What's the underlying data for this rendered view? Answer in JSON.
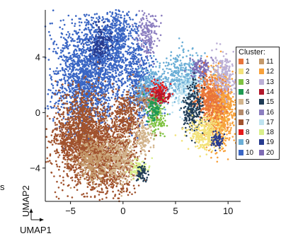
{
  "chart_data": {
    "type": "scatter",
    "title": "",
    "xlabel": "UMAP1",
    "ylabel": "UMAP2",
    "xlim": [
      -7.4,
      11.2
    ],
    "ylim": [
      -6.4,
      7.4
    ],
    "x_ticks": [
      -5,
      0,
      5,
      10
    ],
    "y_ticks": [
      -4,
      0,
      4
    ],
    "x_tick_labels": [
      "−5",
      "0",
      "5",
      "10"
    ],
    "y_tick_labels": [
      "−4",
      "0",
      "4"
    ],
    "legend": {
      "title": "Cluster:",
      "placement": "right",
      "entries": [
        {
          "label": "1",
          "color": "#e8743b"
        },
        {
          "label": "2",
          "color": "#f3e27a"
        },
        {
          "label": "3",
          "color": "#7fc241"
        },
        {
          "label": "4",
          "color": "#1f9a52"
        },
        {
          "label": "5",
          "color": "#d2b48c"
        },
        {
          "label": "6",
          "color": "#b38a6a"
        },
        {
          "label": "7",
          "color": "#a0522d"
        },
        {
          "label": "8",
          "color": "#e41a1c"
        },
        {
          "label": "9",
          "color": "#6baed6"
        },
        {
          "label": "10",
          "color": "#3a66c4"
        },
        {
          "label": "11",
          "color": "#c49a6c"
        },
        {
          "label": "12",
          "color": "#f7a13b"
        },
        {
          "label": "13",
          "color": "#bcb0d6"
        },
        {
          "label": "14",
          "color": "#b2182b"
        },
        {
          "label": "15",
          "color": "#1f3b55"
        },
        {
          "label": "16",
          "color": "#8c7fc0"
        },
        {
          "label": "17",
          "color": "#bfe3f0"
        },
        {
          "label": "18",
          "color": "#d9ef8b"
        },
        {
          "label": "19",
          "color": "#273b8f"
        },
        {
          "label": "20",
          "color": "#7e6bb3"
        }
      ]
    },
    "regions": [
      {
        "cluster": "10",
        "x": -3.3,
        "y": 2.6,
        "sx": 1.7,
        "sy": 2.0,
        "weight": 520
      },
      {
        "cluster": "10",
        "x": -0.6,
        "y": 5.2,
        "sx": 1.0,
        "sy": 1.3,
        "weight": 160
      },
      {
        "cluster": "10",
        "x": 1.6,
        "y": 2.2,
        "sx": 0.7,
        "sy": 1.4,
        "weight": 120
      },
      {
        "cluster": "19",
        "x": -2.2,
        "y": 5.0,
        "sx": 0.6,
        "sy": 0.7,
        "weight": 40
      },
      {
        "cluster": "9",
        "x": 2.8,
        "y": 1.7,
        "sx": 0.8,
        "sy": 0.7,
        "weight": 90
      },
      {
        "cluster": "9",
        "x": 5.8,
        "y": 2.6,
        "sx": 1.1,
        "sy": 0.8,
        "weight": 110
      },
      {
        "cluster": "17",
        "x": 6.3,
        "y": 1.5,
        "sx": 0.9,
        "sy": 0.7,
        "weight": 60
      },
      {
        "cluster": "16",
        "x": 2.4,
        "y": 5.6,
        "sx": 0.5,
        "sy": 0.9,
        "weight": 50
      },
      {
        "cluster": "20",
        "x": 7.4,
        "y": 3.2,
        "sx": 0.5,
        "sy": 0.4,
        "weight": 30
      },
      {
        "cluster": "8",
        "x": 3.4,
        "y": 1.4,
        "sx": 0.5,
        "sy": 0.4,
        "weight": 35
      },
      {
        "cluster": "14",
        "x": 3.6,
        "y": 1.2,
        "sx": 0.4,
        "sy": 0.3,
        "weight": 20
      },
      {
        "cluster": "6",
        "x": 2.2,
        "y": 0.9,
        "sx": 0.5,
        "sy": 0.5,
        "weight": 25
      },
      {
        "cluster": "3",
        "x": 3.2,
        "y": -0.4,
        "sx": 0.4,
        "sy": 0.6,
        "weight": 35
      },
      {
        "cluster": "4",
        "x": 2.9,
        "y": 0.2,
        "sx": 0.3,
        "sy": 0.5,
        "weight": 25
      },
      {
        "cluster": "7",
        "x": -4.0,
        "y": -1.6,
        "sx": 1.3,
        "sy": 1.6,
        "weight": 420
      },
      {
        "cluster": "7",
        "x": -1.2,
        "y": -3.2,
        "sx": 1.3,
        "sy": 1.5,
        "weight": 300
      },
      {
        "cluster": "7",
        "x": 0.4,
        "y": -0.2,
        "sx": 0.6,
        "sy": 1.0,
        "weight": 80
      },
      {
        "cluster": "11",
        "x": -2.6,
        "y": -3.4,
        "sx": 0.9,
        "sy": 0.8,
        "weight": 110
      },
      {
        "cluster": "5",
        "x": -0.3,
        "y": -3.4,
        "sx": 0.8,
        "sy": 0.8,
        "weight": 80
      },
      {
        "cluster": "5",
        "x": 1.9,
        "y": -1.7,
        "sx": 0.5,
        "sy": 0.6,
        "weight": 40
      },
      {
        "cluster": "18",
        "x": 1.6,
        "y": -4.0,
        "sx": 0.4,
        "sy": 0.3,
        "weight": 25
      },
      {
        "cluster": "15",
        "x": 1.8,
        "y": -4.4,
        "sx": 0.3,
        "sy": 0.3,
        "weight": 15
      },
      {
        "cluster": "12",
        "x": 9.2,
        "y": 0.4,
        "sx": 0.7,
        "sy": 1.3,
        "weight": 260
      },
      {
        "cluster": "1",
        "x": 8.3,
        "y": 1.2,
        "sx": 0.7,
        "sy": 0.8,
        "weight": 110
      },
      {
        "cluster": "15",
        "x": 6.7,
        "y": 0.3,
        "sx": 0.5,
        "sy": 0.9,
        "weight": 70
      },
      {
        "cluster": "2",
        "x": 7.9,
        "y": -1.5,
        "sx": 0.8,
        "sy": 0.6,
        "weight": 90
      },
      {
        "cluster": "13",
        "x": 9.6,
        "y": 2.6,
        "sx": 0.6,
        "sy": 0.8,
        "weight": 60
      },
      {
        "cluster": "19",
        "x": 9.0,
        "y": -2.0,
        "sx": 0.3,
        "sy": 0.3,
        "weight": 20
      }
    ]
  },
  "left_fragment": "s"
}
